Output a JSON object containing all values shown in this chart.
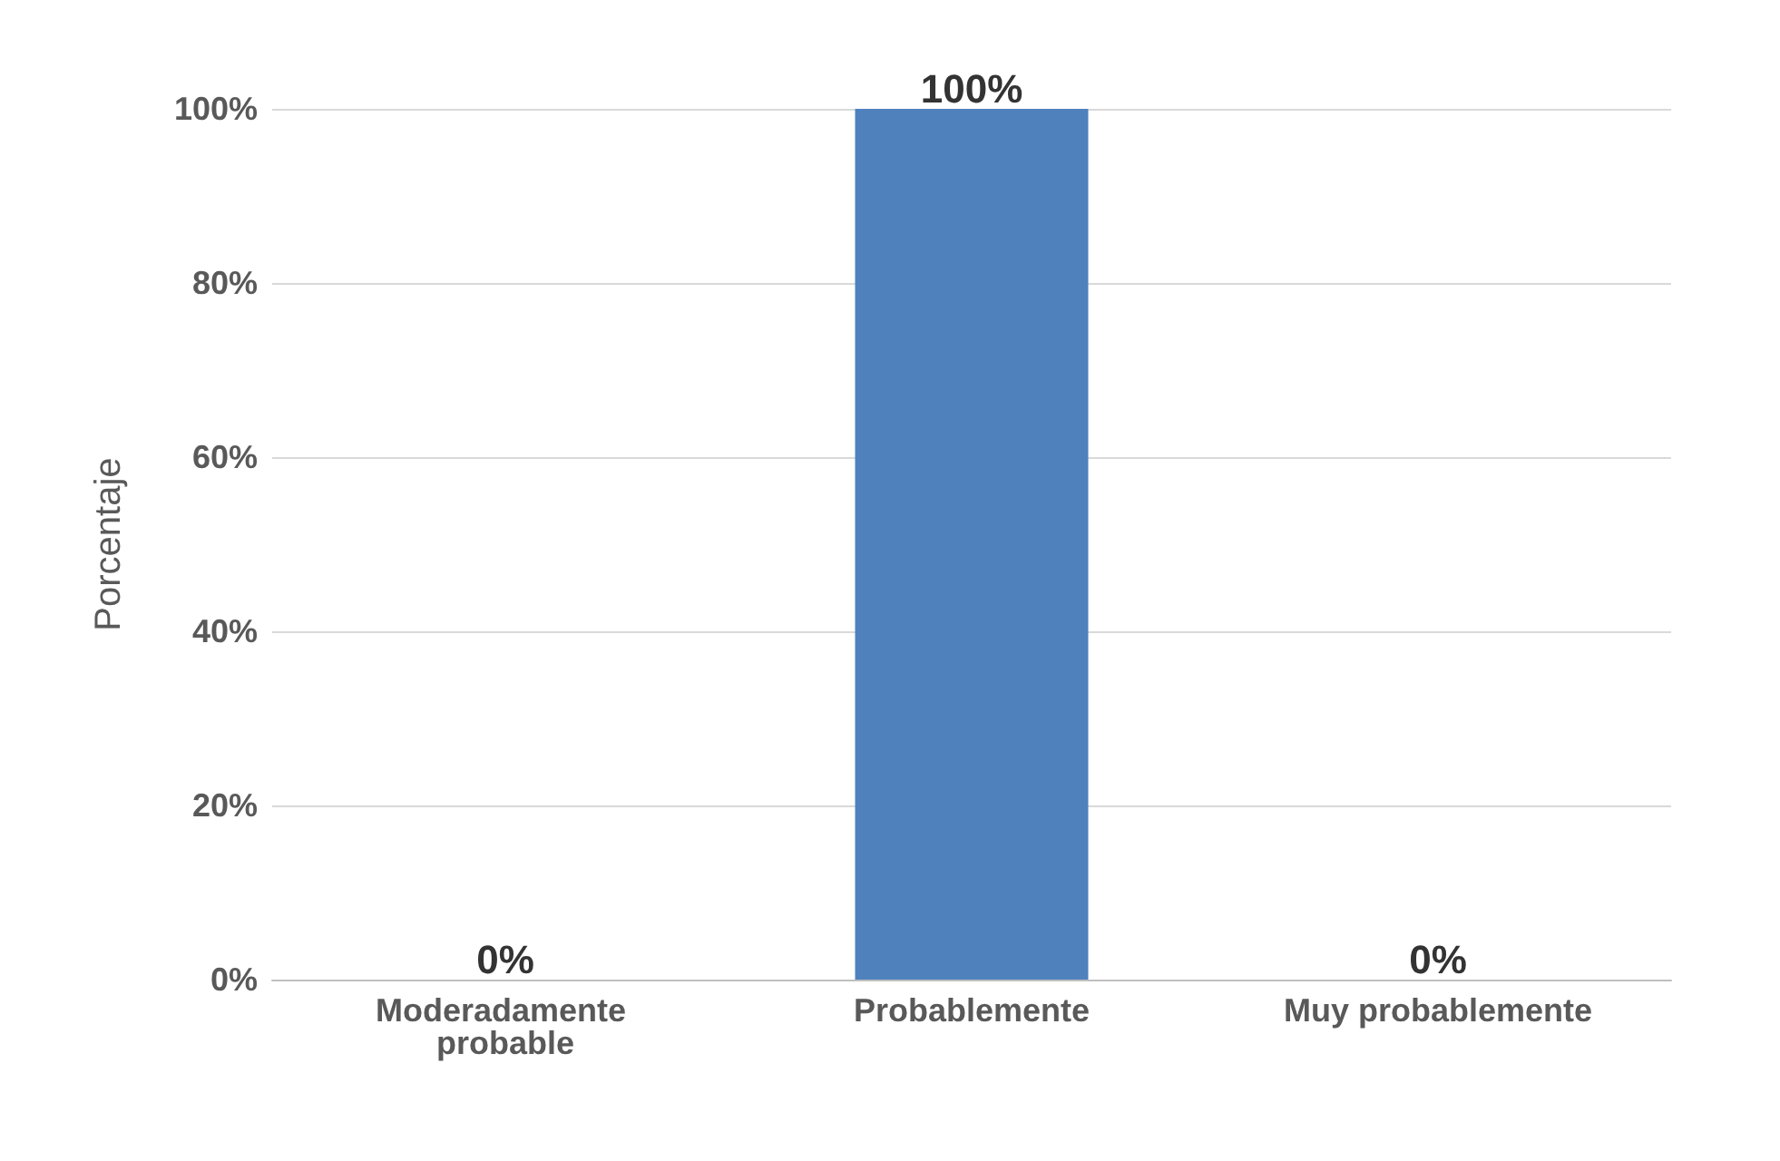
{
  "chart_data": {
    "type": "bar",
    "ylabel": "Porcentaje",
    "categories": [
      "Moderadamente probable",
      "Probablemente",
      "Muy probablemente"
    ],
    "values": [
      0,
      100,
      0
    ],
    "color": "#4f81bd",
    "value_labels": [
      "0%",
      "100%",
      "0%"
    ],
    "ylim": [
      0,
      100
    ],
    "yticks": [
      {
        "value": 0,
        "label": "0%"
      },
      {
        "value": 20,
        "label": "20%"
      },
      {
        "value": 40,
        "label": "40%"
      },
      {
        "value": 60,
        "label": "60%"
      },
      {
        "value": 80,
        "label": "80%"
      },
      {
        "value": 100,
        "label": "100%"
      }
    ],
    "grid": "y"
  }
}
